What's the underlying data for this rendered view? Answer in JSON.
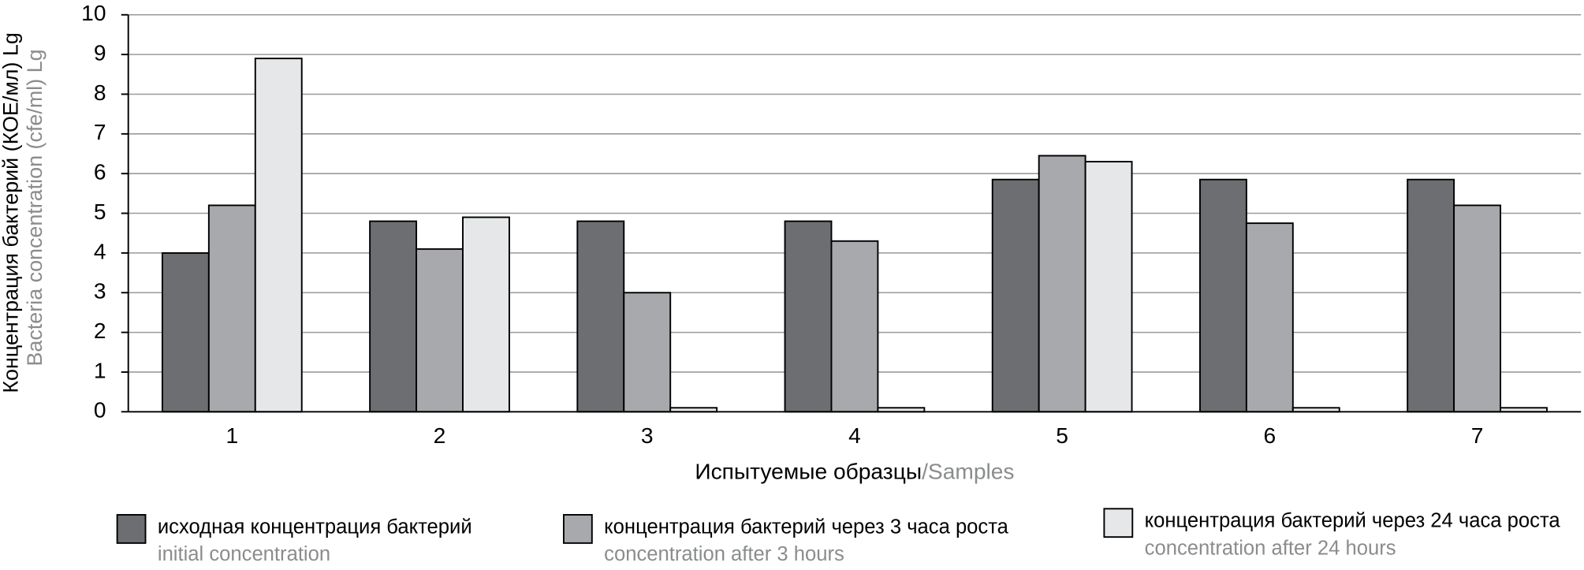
{
  "chart_data": {
    "type": "bar",
    "ylabel": "Концентрация бактерий (КОЕ/мл) Lg",
    "ylabel_en": "Bacteria concentration (cfe/ml) Lg",
    "xlabel": "Испытуемые образцы",
    "xlabel_en": "/Samples",
    "categories": [
      "1",
      "2",
      "3",
      "4",
      "5",
      "6",
      "7"
    ],
    "series": [
      {
        "name": "исходная концентрация бактерий",
        "name_en": "initial concentration",
        "color": "#6d6e71",
        "values": [
          4.0,
          4.8,
          4.8,
          4.8,
          5.85,
          5.85,
          5.85
        ]
      },
      {
        "name": "концентрация бактерий через 3 часа роста",
        "name_en": "concentration after 3 hours",
        "color": "#a7a9ac",
        "values": [
          5.2,
          4.1,
          3.0,
          4.3,
          6.45,
          4.75,
          5.2
        ]
      },
      {
        "name": "концентрация бактерий через 24 часа роста",
        "name_en": "concentration after 24 hours",
        "color": "#e6e7e8",
        "values": [
          8.9,
          4.9,
          0.1,
          0.1,
          6.3,
          0.1,
          0.1
        ]
      }
    ],
    "ylim": [
      0,
      10
    ],
    "yticks": [
      0,
      1,
      2,
      3,
      4,
      5,
      6,
      7,
      8,
      9,
      10
    ],
    "grid": true
  }
}
